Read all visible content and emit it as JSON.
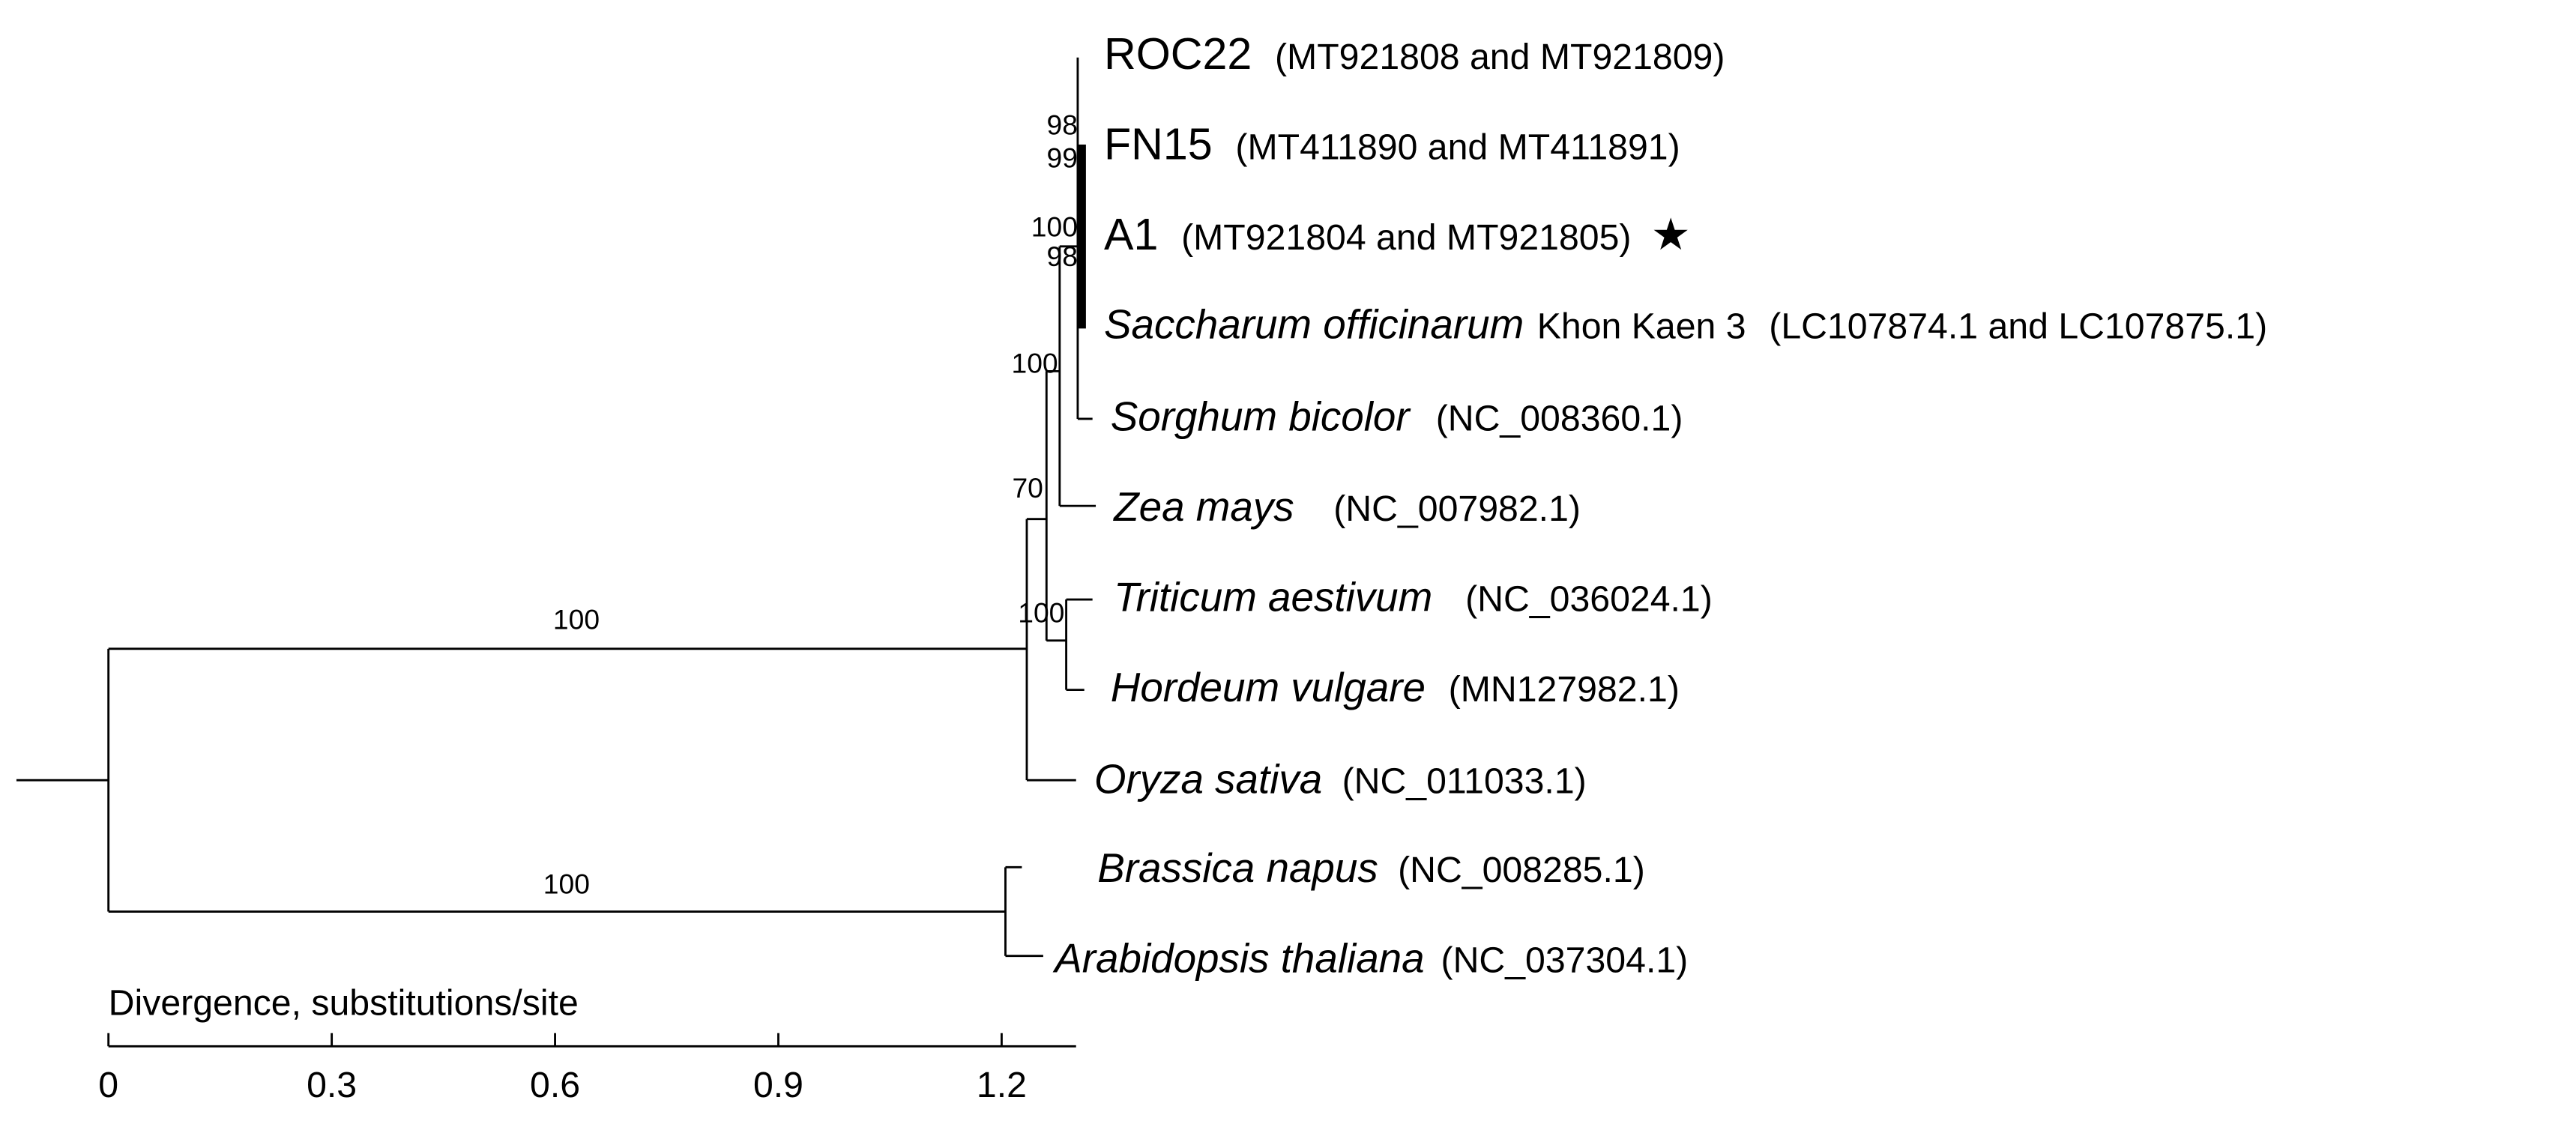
{
  "leaves": [
    {
      "name": "ROC22",
      "accession": "(MT921808 and MT921809)"
    },
    {
      "name": "FN15",
      "accession": "(MT411890 and MT411891)"
    },
    {
      "name": "A1",
      "accession": "(MT921804 and MT921805)",
      "marker": "★"
    },
    {
      "name": "Saccharum officinarum",
      "strain": "Khon Kaen 3",
      "accession": "(LC107874.1 and LC107875.1)"
    },
    {
      "name": "Sorghum bicolor",
      "accession": "(NC_008360.1)"
    },
    {
      "name": "Zea mays",
      "accession": "(NC_007982.1)"
    },
    {
      "name": "Triticum aestivum",
      "accession": "(NC_036024.1)"
    },
    {
      "name": "Hordeum vulgare",
      "accession": "(MN127982.1)"
    },
    {
      "name": "Oryza sativa",
      "accession": "(NC_011033.1)"
    },
    {
      "name": "Brassica napus",
      "accession": "(NC_008285.1)"
    },
    {
      "name": "Arabidopsis thaliana",
      "accession": "(NC_037304.1)"
    }
  ],
  "bootstrap": [
    "98",
    "99",
    "100",
    "98",
    "100",
    "70",
    "100",
    "100",
    "100"
  ],
  "scale": {
    "title": "Divergence, substitutions/site",
    "xlim": [
      0,
      1.3
    ],
    "ticks": [
      0,
      0.3,
      0.6,
      0.9,
      1.2
    ]
  }
}
